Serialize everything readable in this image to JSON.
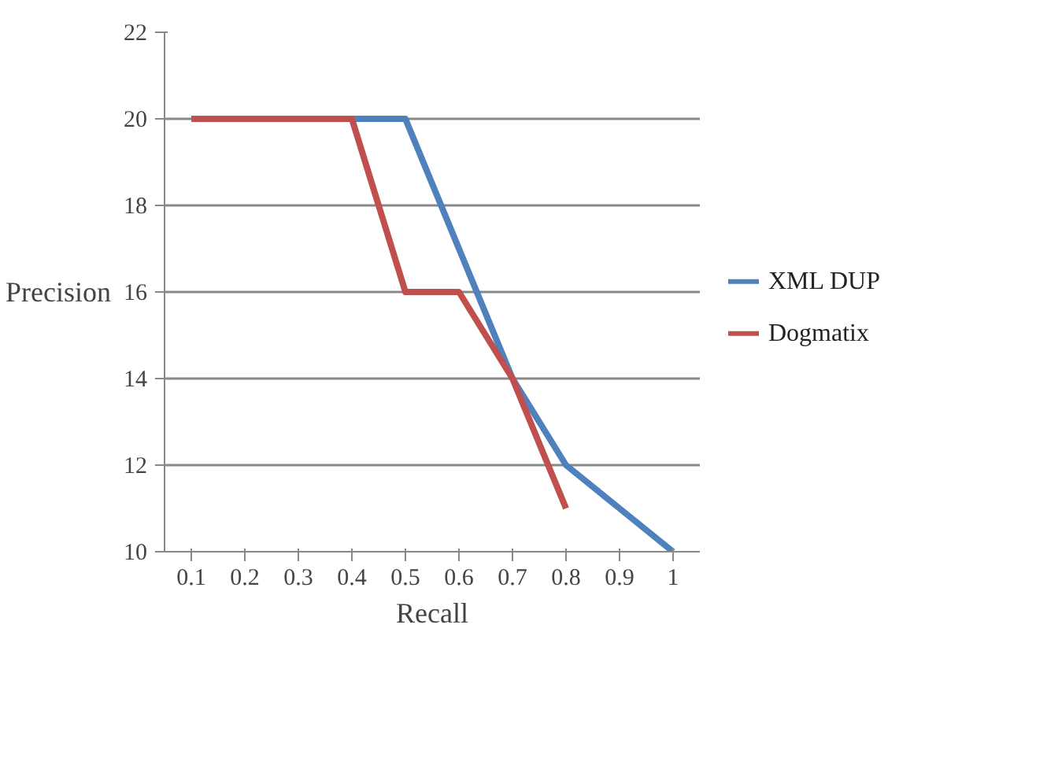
{
  "chart_data": {
    "type": "line",
    "xlabel": "Recall",
    "ylabel": "Precision",
    "categories": [
      "0.1",
      "0.2",
      "0.3",
      "0.4",
      "0.5",
      "0.6",
      "0.7",
      "0.8",
      "0.9",
      "1"
    ],
    "series": [
      {
        "name": "XML DUP",
        "color": "#4f81bd",
        "values": [
          null,
          null,
          null,
          20,
          20,
          17,
          14,
          12,
          11,
          10
        ]
      },
      {
        "name": "Dogmatix",
        "color": "#c0504d",
        "values": [
          20,
          20,
          20,
          20,
          16,
          16,
          14,
          11,
          null,
          null
        ]
      }
    ],
    "ylim": [
      10,
      22
    ],
    "yticks": [
      10,
      12,
      14,
      16,
      18,
      20,
      22
    ],
    "grid": "y",
    "legend": "right",
    "marker": "none",
    "line_style": "solid"
  }
}
